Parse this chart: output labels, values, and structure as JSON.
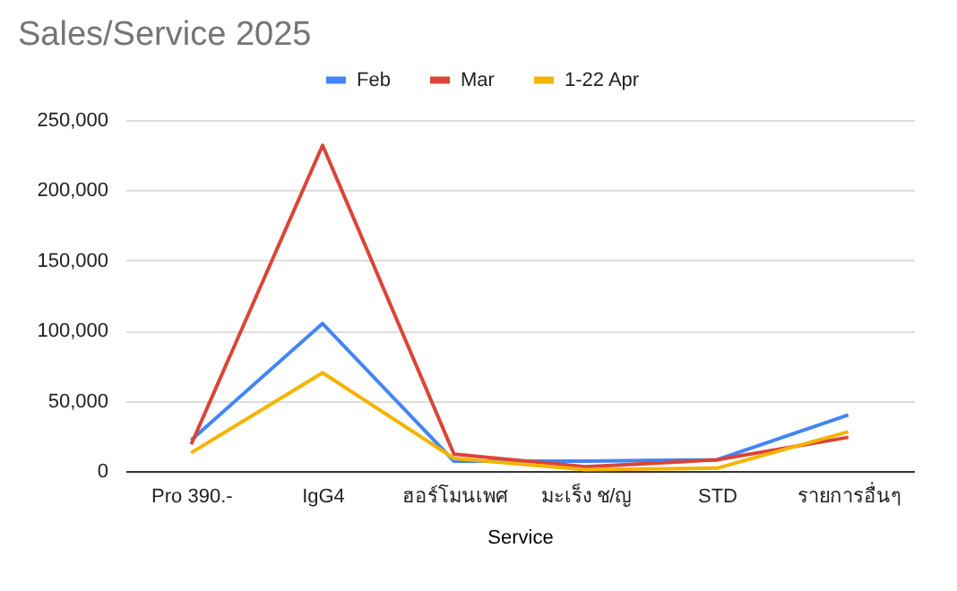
{
  "chart_data": {
    "type": "line",
    "title": "Sales/Service 2025",
    "xlabel": "Service",
    "categories": [
      "Pro 390.-",
      "IgG4",
      "ฮอร์โมนเพศ",
      "มะเร็ง ช/ญ",
      "STD",
      "รายการอื่นๆ"
    ],
    "series": [
      {
        "name": "Feb",
        "color": "#4285f4",
        "values": [
          22000,
          105000,
          7000,
          7000,
          8000,
          40000
        ]
      },
      {
        "name": "Mar",
        "color": "#db4437",
        "values": [
          19000,
          232000,
          12000,
          3000,
          8000,
          24000
        ]
      },
      {
        "name": "1-22 Apr",
        "color": "#f4b400",
        "values": [
          13000,
          70000,
          9000,
          1000,
          2000,
          28000
        ]
      }
    ],
    "ylim": [
      0,
      250000
    ],
    "yticks": [
      0,
      {
        "value": 50000,
        "label": "50,000"
      },
      {
        "value": 100000,
        "label": "100,000"
      },
      {
        "value": 150000,
        "label": "150,000"
      },
      {
        "value": 200000,
        "label": "200,000"
      },
      {
        "value": 250000,
        "label": "250,000"
      }
    ],
    "grid": "y",
    "legend": "top",
    "marker": "none"
  }
}
